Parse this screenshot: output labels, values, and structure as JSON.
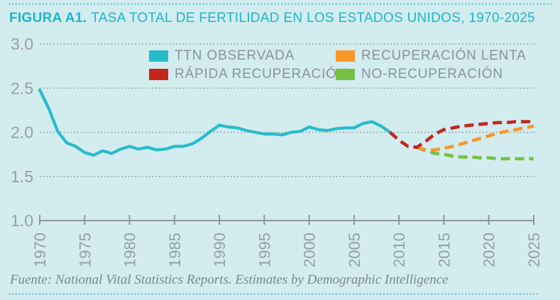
{
  "title": {
    "prefix": "FIGURA A1.",
    "text": "TASA TOTAL DE FERTILIDAD EN LOS ESTADOS UNIDOS, 1970-2025"
  },
  "footer": {
    "source": "Fuente: National Vital Statistics Reports. Estimates by Demographic Intelligence"
  },
  "colors": {
    "background": "#d2ecf0",
    "title": "#1cb7c8",
    "observed": "#27bcca",
    "rapid_recovery": "#c3271b",
    "slow_recovery": "#f89728",
    "no_recovery": "#76c043",
    "axis": "#8d969b",
    "grid": "#8b9498",
    "tick_label": "#969fa4",
    "legend_text": "#8b9398",
    "source_text": "#7d868b",
    "border_dots": "#4cc3d1"
  },
  "legend": {
    "items": [
      {
        "label": "TTN OBSERVADA",
        "color": "#27bcca"
      },
      {
        "label": "RECUPERACIÓN LENTA",
        "color": "#f89728"
      },
      {
        "label": "RÁPIDA RECUPERACIÓN",
        "color": "#c3271b"
      },
      {
        "label": "NO-RECUPERACIÓN",
        "color": "#76c043"
      }
    ]
  },
  "chart_data": {
    "type": "line",
    "title": "FIGURA A1. TASA TOTAL DE FERTILIDAD EN LOS ESTADOS UNIDOS, 1970-2025",
    "xlabel": "",
    "ylabel": "",
    "x_range": [
      1970,
      2025
    ],
    "y_range": [
      1.0,
      3.0
    ],
    "x_ticks": [
      "1970",
      "1975",
      "1980",
      "1985",
      "1990",
      "1995",
      "2000",
      "2005",
      "2010",
      "2015",
      "2020",
      "2025"
    ],
    "y_ticks": [
      "3.0",
      "2.5",
      "2.0",
      "1.5",
      "1.0"
    ],
    "y_tick_values": [
      3.0,
      2.5,
      2.0,
      1.5,
      1.0
    ],
    "y_gridline_values": [
      3.0,
      2.5,
      2.0,
      1.5
    ],
    "grid": "dotted horizontal gridlines, solid bottom axis with ticks",
    "legend_position": "top-center, two columns",
    "source": "Fuente: National Vital Statistics Reports. Estimates by Demographic Intelligence",
    "series": [
      {
        "id": "observed",
        "name": "TTN OBSERVADA",
        "style": "solid",
        "color": "#27bcca",
        "points": [
          [
            1970,
            2.48
          ],
          [
            1971,
            2.27
          ],
          [
            1972,
            2.01
          ],
          [
            1973,
            1.88
          ],
          [
            1974,
            1.84
          ],
          [
            1975,
            1.77
          ],
          [
            1976,
            1.74
          ],
          [
            1977,
            1.79
          ],
          [
            1978,
            1.76
          ],
          [
            1979,
            1.81
          ],
          [
            1980,
            1.84
          ],
          [
            1981,
            1.81
          ],
          [
            1982,
            1.83
          ],
          [
            1983,
            1.8
          ],
          [
            1984,
            1.81
          ],
          [
            1985,
            1.84
          ],
          [
            1986,
            1.84
          ],
          [
            1987,
            1.87
          ],
          [
            1988,
            1.93
          ],
          [
            1989,
            2.01
          ],
          [
            1990,
            2.08
          ],
          [
            1991,
            2.06
          ],
          [
            1992,
            2.05
          ],
          [
            1993,
            2.02
          ],
          [
            1994,
            2.0
          ],
          [
            1995,
            1.98
          ],
          [
            1996,
            1.98
          ],
          [
            1997,
            1.97
          ],
          [
            1998,
            2.0
          ],
          [
            1999,
            2.01
          ],
          [
            2000,
            2.06
          ],
          [
            2001,
            2.03
          ],
          [
            2002,
            2.02
          ],
          [
            2003,
            2.04
          ],
          [
            2004,
            2.05
          ],
          [
            2005,
            2.05
          ],
          [
            2006,
            2.1
          ],
          [
            2007,
            2.12
          ],
          [
            2008,
            2.07
          ],
          [
            2009,
            2.0
          ]
        ]
      },
      {
        "id": "no-recovery",
        "name": "NO-RECUPERACIÓN",
        "style": "dashed",
        "color": "#76c043",
        "points": [
          [
            2012,
            1.83
          ],
          [
            2013,
            1.79
          ],
          [
            2014,
            1.76
          ],
          [
            2015,
            1.75
          ],
          [
            2016,
            1.73
          ],
          [
            2017,
            1.72
          ],
          [
            2018,
            1.72
          ],
          [
            2019,
            1.71
          ],
          [
            2020,
            1.71
          ],
          [
            2021,
            1.7
          ],
          [
            2022,
            1.7
          ],
          [
            2023,
            1.7
          ],
          [
            2024,
            1.7
          ],
          [
            2025,
            1.7
          ]
        ]
      },
      {
        "id": "slow-recovery",
        "name": "RECUPERACIÓN LENTA",
        "style": "dashed",
        "color": "#f89728",
        "points": [
          [
            2012,
            1.83
          ],
          [
            2013,
            1.8
          ],
          [
            2014,
            1.8
          ],
          [
            2015,
            1.82
          ],
          [
            2016,
            1.84
          ],
          [
            2017,
            1.87
          ],
          [
            2018,
            1.9
          ],
          [
            2019,
            1.93
          ],
          [
            2020,
            1.96
          ],
          [
            2021,
            1.99
          ],
          [
            2022,
            2.01
          ],
          [
            2023,
            2.03
          ],
          [
            2024,
            2.05
          ],
          [
            2025,
            2.07
          ]
        ]
      },
      {
        "id": "rapid-recovery",
        "name": "RÁPIDA RECUPERACIÓN",
        "style": "dashed",
        "color": "#c3271b",
        "points": [
          [
            2009,
            2.0
          ],
          [
            2010,
            1.91
          ],
          [
            2011,
            1.84
          ],
          [
            2012,
            1.83
          ],
          [
            2013,
            1.9
          ],
          [
            2014,
            1.98
          ],
          [
            2015,
            2.03
          ],
          [
            2016,
            2.05
          ],
          [
            2017,
            2.07
          ],
          [
            2018,
            2.08
          ],
          [
            2019,
            2.09
          ],
          [
            2020,
            2.1
          ],
          [
            2021,
            2.11
          ],
          [
            2022,
            2.11
          ],
          [
            2023,
            2.12
          ],
          [
            2024,
            2.12
          ],
          [
            2025,
            2.12
          ]
        ]
      }
    ]
  }
}
